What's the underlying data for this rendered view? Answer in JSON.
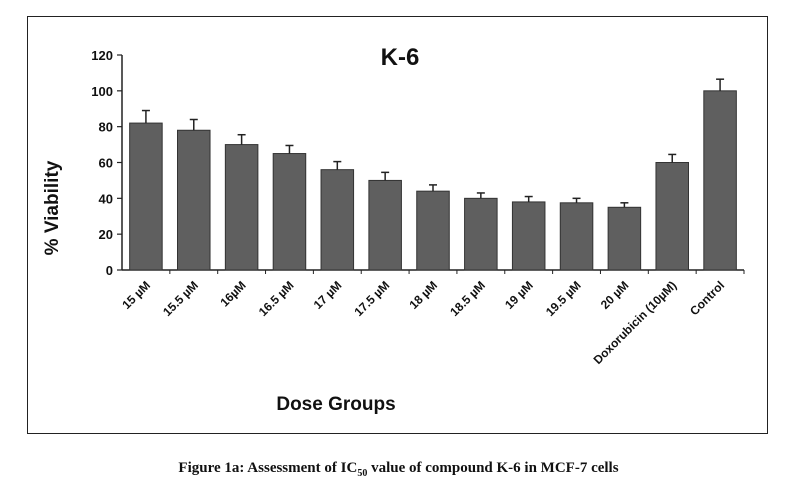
{
  "chart_data": {
    "type": "bar",
    "title": "K-6",
    "xlabel": "Dose Groups",
    "ylabel": "% Viability",
    "categories": [
      "15 µM",
      "15.5 µM",
      "16µM",
      "16.5 µM",
      "17 µM",
      "17.5 µM",
      "18 µM",
      "18.5 µM",
      "19 µM",
      "19.5 µM",
      "20 µM",
      "Doxorubicin (10µM)",
      "Control"
    ],
    "values": [
      82,
      78,
      70,
      65,
      56,
      50,
      44,
      40,
      38,
      37.5,
      35,
      60,
      100
    ],
    "errors": [
      7,
      6,
      5.5,
      4.5,
      4.5,
      4.5,
      3.5,
      3,
      3,
      2.5,
      2.5,
      4.5,
      6.5
    ],
    "ylim": [
      0,
      120
    ],
    "yticks": [
      0,
      20,
      40,
      60,
      80,
      100,
      120
    ],
    "grid": false,
    "bar_color": "#5f5f5f"
  },
  "caption": {
    "prefix": "Figure 1a: Assessment of IC",
    "subscript": "50",
    "suffix": " value of compound K-6 in MCF-7 cells"
  }
}
